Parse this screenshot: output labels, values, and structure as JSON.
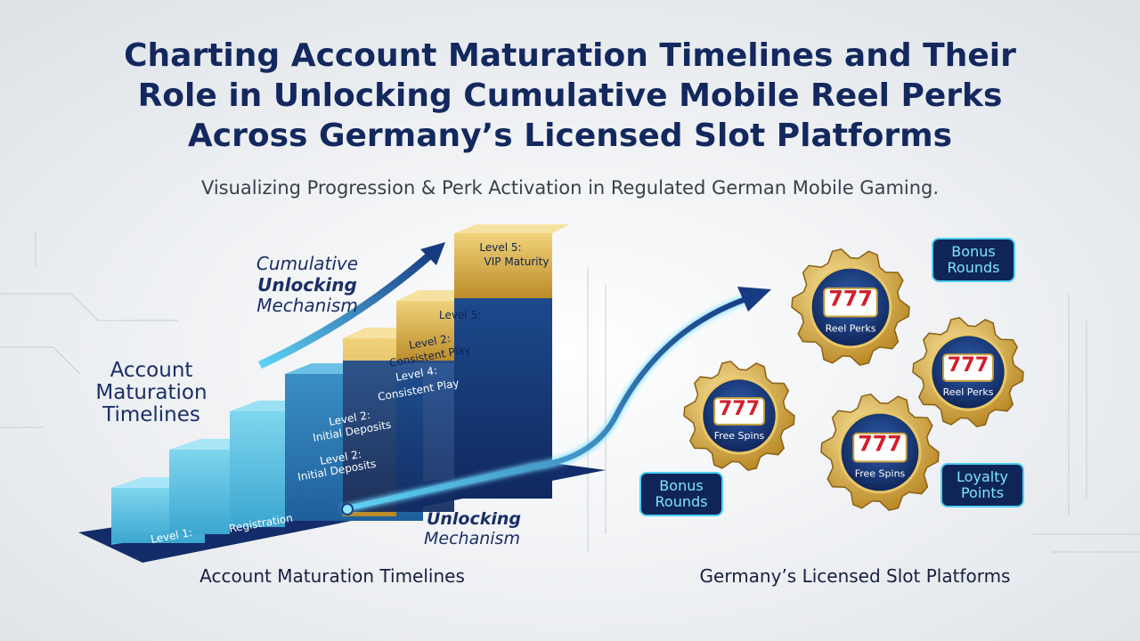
{
  "header": {
    "title_lines": [
      "Charting Account Maturation Timelines and Their",
      "Role in Unlocking Cumulative Mobile Reel Perks",
      "Across Germany’s Licensed Slot Platforms"
    ],
    "subtitle": "Visualizing Progression & Perk Activation in Regulated German Mobile Gaming."
  },
  "left": {
    "heading_lines": [
      "Account",
      "Maturation",
      "Timelines"
    ],
    "cumulative_lines": [
      "Cumulative",
      "Unlocking",
      "Mechanism"
    ],
    "unlocking_lines": [
      "Unlocking",
      "Mechanism"
    ],
    "steps": [
      [
        "Level 1:"
      ],
      [
        "Registration"
      ],
      [
        "Level 2:",
        "Initial Deposits"
      ],
      [
        "Level 2:",
        "Initial Deposits"
      ],
      [
        "Level 4:",
        "Consistent Play"
      ],
      [
        "Level 2:",
        "Consistent Play"
      ],
      [
        "Level 5:"
      ],
      [
        "Level 5:",
        "VIP Maturity"
      ]
    ],
    "caption": "Account Maturation Timelines"
  },
  "right": {
    "gears": [
      {
        "symbols": "777",
        "label": "Reel Perks"
      },
      {
        "symbols": "777",
        "label": "Reel Perks"
      },
      {
        "symbols": "777",
        "label": "Free Spins"
      },
      {
        "symbols": "777",
        "label": "Free Spins"
      }
    ],
    "badges": [
      [
        "Bonus",
        "Rounds"
      ],
      [
        "Bonus",
        "Rounds"
      ],
      [
        "Loyalty",
        "Points"
      ]
    ],
    "caption": "Germany’s Licensed Slot Platforms"
  }
}
